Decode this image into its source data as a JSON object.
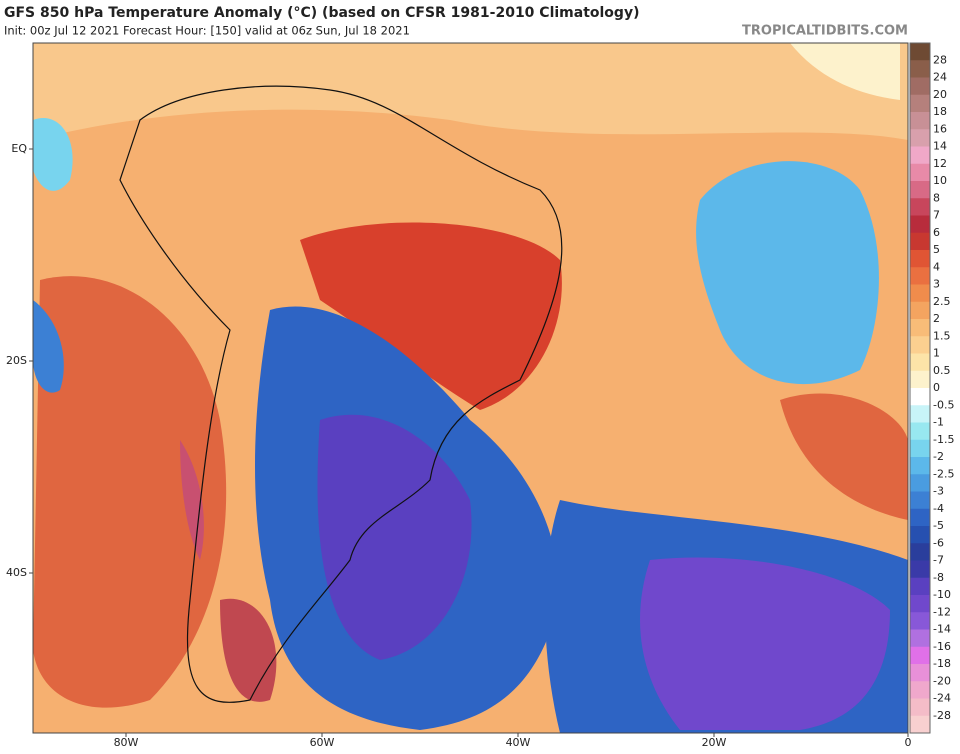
{
  "header": {
    "title": "GFS 850 hPa Temperature Anomaly (°C) (based on CFSR 1981-2010 Climatology)",
    "subtitle": "Init: 00z Jul 12 2021   Forecast Hour: [150]   valid at 06z Sun, Jul 18 2021",
    "watermark": "TROPICALTIDBITS.COM"
  },
  "map": {
    "lat_labels": [
      "EQ",
      "20S",
      "40S"
    ],
    "lon_labels": [
      "80W",
      "60W",
      "40W",
      "20W",
      "0"
    ]
  },
  "colorbar": {
    "labels": [
      28,
      24,
      20,
      18,
      16,
      14,
      12,
      10,
      8,
      7,
      6,
      5,
      4,
      3,
      2.5,
      2,
      1.5,
      1,
      0.5,
      0,
      -0.5,
      -1,
      -1.5,
      -2,
      -2.5,
      -3,
      -4,
      -5,
      -6,
      -7,
      -8,
      -10,
      -12,
      -14,
      -16,
      -18,
      -20,
      -24,
      -28
    ],
    "colors": [
      "#6e4a33",
      "#8a5e4a",
      "#a06c64",
      "#b5807c",
      "#c89096",
      "#d8a0ac",
      "#f0a8c8",
      "#e88aa8",
      "#d86a86",
      "#c8465c",
      "#b82c3c",
      "#c83830",
      "#e05534",
      "#ea7040",
      "#f08c4c",
      "#f4a460",
      "#f8bc78",
      "#fbd090",
      "#fce4a8",
      "#fdf2cc",
      "#ffffff",
      "#c8f4f8",
      "#98e8f0",
      "#78d4ee",
      "#5cb8ea",
      "#4a9ce0",
      "#3c80d4",
      "#2e64c4",
      "#2650b0",
      "#2a3e9c",
      "#3a3aa8",
      "#5a40c0",
      "#7048cc",
      "#8858d8",
      "#b070e0",
      "#e070e8",
      "#e890d8",
      "#f0a8cc",
      "#f4bcc8",
      "#f8d0d0"
    ]
  }
}
